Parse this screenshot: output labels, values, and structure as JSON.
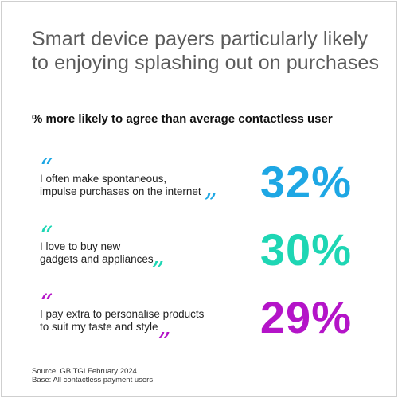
{
  "header": {
    "title": "Smart device payers particularly likely to enjoying splashing out on purchases",
    "subtitle": "% more likely to agree than average contactless user"
  },
  "stats": [
    {
      "line1": "I often make spontaneous,",
      "line2": "impulse purchases on the internet",
      "value": "32%",
      "color": "#1ea7e4"
    },
    {
      "line1": "I love to buy new",
      "line2": "gadgets and appliances",
      "value": "30%",
      "color": "#1ed6b4"
    },
    {
      "line1": "I pay extra to personalise products",
      "line2": "to suit my taste and style",
      "value": "29%",
      "color": "#b414c8"
    }
  ],
  "quote_glyphs": {
    "open": "“",
    "close": "”"
  },
  "footer": {
    "source": "Source: GB TGI February 2024",
    "base": "Base: All contactless payment users"
  },
  "chart_data": {
    "type": "table",
    "title": "Smart device payers particularly likely to enjoying splashing out on purchases",
    "subtitle": "% more likely to agree than average contactless user",
    "categories": [
      "I often make spontaneous, impulse purchases on the internet",
      "I love to buy new gadgets and appliances",
      "I pay extra to personalise products to suit my taste and style"
    ],
    "values": [
      32,
      30,
      29
    ],
    "colors": [
      "#1ea7e4",
      "#1ed6b4",
      "#b414c8"
    ]
  }
}
